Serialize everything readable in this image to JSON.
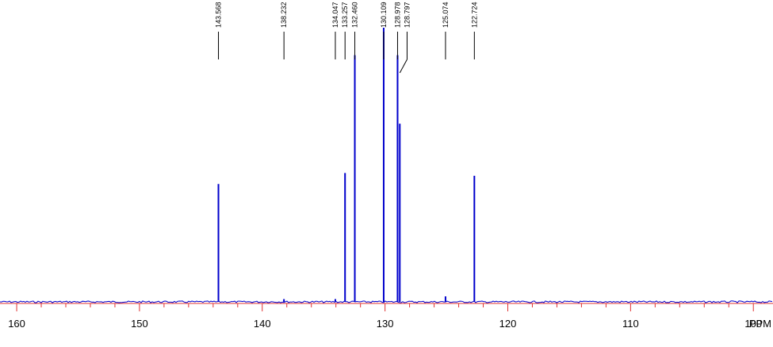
{
  "chart_data": {
    "type": "nmr-spectrum",
    "x_label": "PPM",
    "x": [
      143.568,
      138.232,
      134.047,
      133.257,
      132.46,
      130.109,
      128.978,
      128.797,
      125.074,
      122.724
    ],
    "peak_labels": [
      "143.568",
      "138.232",
      "134.047",
      "133.257",
      "132.460",
      "130.109",
      "128.978",
      "128.797",
      "125.074",
      "122.724"
    ],
    "values": [
      43,
      1,
      1,
      47,
      90,
      100,
      90,
      65,
      2,
      46
    ],
    "color": "#0000cc",
    "axis_color": "#e03030",
    "xlim": [
      161.36,
      98.4
    ],
    "ylim": [
      0,
      100
    ],
    "xticks": [
      160,
      150,
      140,
      130,
      120,
      110,
      100
    ],
    "xminorticks": [
      158,
      156,
      154,
      152,
      148,
      146,
      144,
      142,
      138,
      136,
      134,
      132,
      128,
      126,
      124,
      122,
      118,
      116,
      114,
      112,
      108,
      106,
      104,
      102
    ]
  }
}
